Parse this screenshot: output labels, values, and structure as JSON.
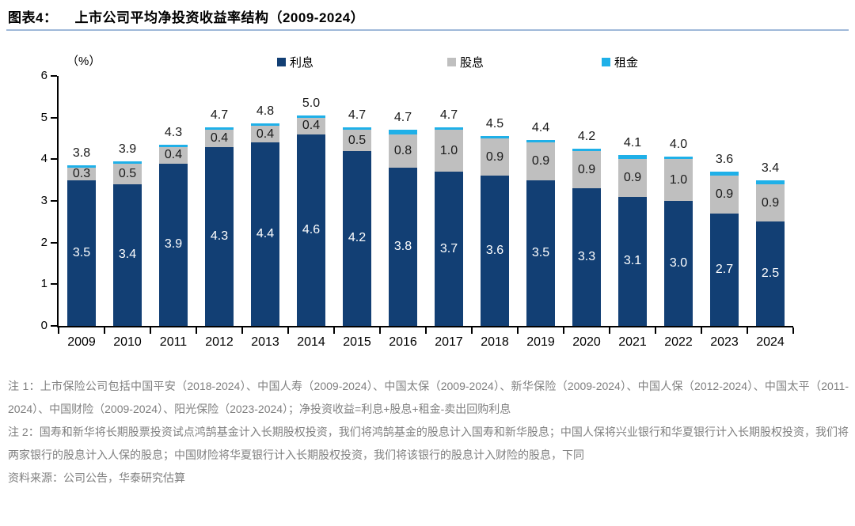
{
  "figure": {
    "label": "图表4：",
    "title": "上市公司平均净投资收益率结构（2009-2024）"
  },
  "unit_label": "（%）",
  "colors": {
    "interest": "#123F74",
    "dividend": "#BFBFBF",
    "rent": "#1FB0E8",
    "axis": "#000000",
    "rule": "#9FB9D9",
    "note_text": "#7F7F7F"
  },
  "legend": {
    "items": [
      {
        "name": "interest",
        "label": "利息"
      },
      {
        "name": "dividend",
        "label": "股息"
      },
      {
        "name": "rent",
        "label": "租金"
      }
    ]
  },
  "axis": {
    "y_ticks": [
      0,
      1,
      2,
      3,
      4,
      5,
      6
    ],
    "y_max": 6
  },
  "chart_data": {
    "type": "bar",
    "stacked": true,
    "title": "上市公司平均净投资收益率结构（2009-2024）",
    "ylabel": "（%）",
    "ylim": [
      0,
      6
    ],
    "grid": false,
    "legend_position": "top",
    "categories": [
      "2009",
      "2010",
      "2011",
      "2012",
      "2013",
      "2014",
      "2015",
      "2016",
      "2017",
      "2018",
      "2019",
      "2020",
      "2021",
      "2022",
      "2023",
      "2024"
    ],
    "series": [
      {
        "name": "利息",
        "color": "#123F74",
        "labeled": true,
        "values": [
          3.5,
          3.4,
          3.9,
          4.3,
          4.4,
          4.6,
          4.2,
          3.8,
          3.7,
          3.6,
          3.5,
          3.3,
          3.1,
          3.0,
          2.7,
          2.5
        ]
      },
      {
        "name": "股息",
        "color": "#BFBFBF",
        "labeled": true,
        "values": [
          0.3,
          0.5,
          0.4,
          0.4,
          0.4,
          0.4,
          0.5,
          0.8,
          1.0,
          0.9,
          0.9,
          0.9,
          0.9,
          1.0,
          0.9,
          0.9
        ]
      },
      {
        "name": "租金",
        "color": "#1FB0E8",
        "labeled": false,
        "values": [
          0.05,
          0.05,
          0.05,
          0.05,
          0.05,
          0.05,
          0.05,
          0.1,
          0.05,
          0.05,
          0.05,
          0.05,
          0.1,
          0.05,
          0.1,
          0.1
        ]
      }
    ],
    "totals": [
      3.8,
      3.9,
      4.3,
      4.7,
      4.8,
      5.0,
      4.7,
      4.7,
      4.7,
      4.5,
      4.4,
      4.2,
      4.1,
      4.0,
      3.6,
      3.4
    ]
  },
  "notes": {
    "note1": "注 1：上市保险公司包括中国平安（2018-2024）、中国人寿（2009-2024）、中国太保（2009-2024）、新华保险（2009-2024）、中国人保（2012-2024）、中国太平（2011-2024）、中国财险（2009-2024）、阳光保险（2023-2024）；净投资收益=利息+股息+租金-卖出回购利息",
    "note2": "注 2：国寿和新华将长期股票投资试点鸿鹄基金计入长期股权投资，我们将鸿鹄基金的股息计入国寿和新华股息；中国人保将兴业银行和华夏银行计入长期股权投资，我们将两家银行的股息计入人保的股息；中国财险将华夏银行计入长期股权投资，我们将该银行的股息计入财险的股息，下同",
    "source": "资料来源：公司公告，华泰研究估算"
  }
}
